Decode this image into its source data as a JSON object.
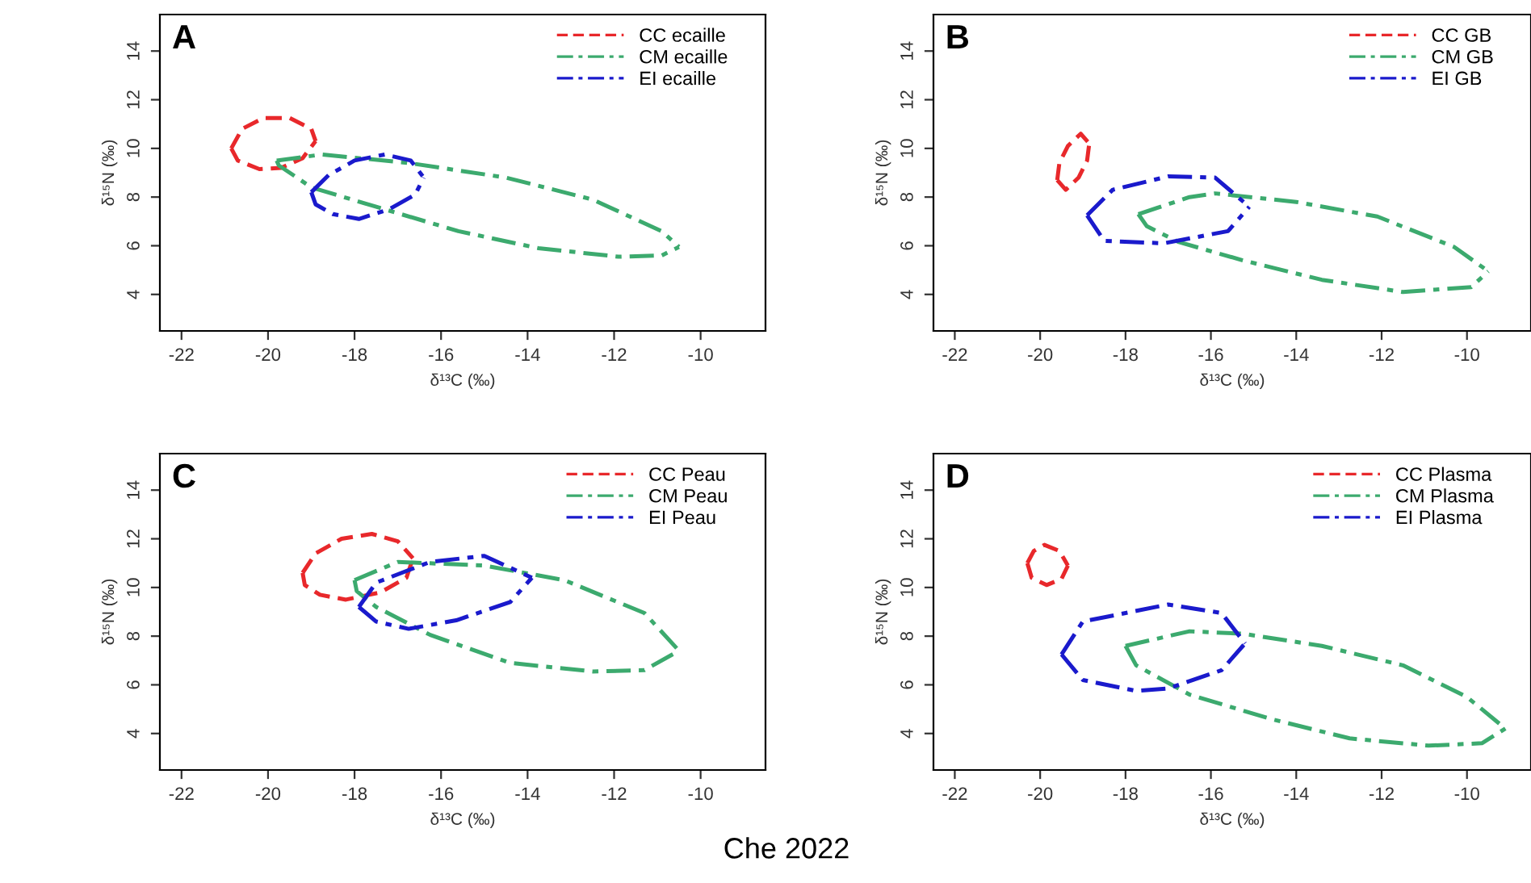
{
  "chart_data": [
    {
      "type": "line",
      "title": "A",
      "xlabel": "δ¹³C (‰)",
      "ylabel": "δ¹⁵N (‰)",
      "xlim": [
        -22.5,
        -8.5
      ],
      "ylim": [
        2.5,
        15.5
      ],
      "xticks": [
        -22,
        -20,
        -18,
        -16,
        -14,
        -12,
        -10
      ],
      "yticks": [
        4,
        6,
        8,
        10,
        12,
        14
      ],
      "legend": "top right",
      "marker": "none",
      "series": [
        {
          "name": "CC ecaille",
          "color": "#e8282b",
          "line_style": "dashed",
          "x": [
            -20.85,
            -20.6,
            -20.1,
            -19.5,
            -19.0,
            -18.9
          ],
          "values": [
            10.0,
            10.8,
            11.25,
            11.25,
            10.8,
            10.3
          ]
        },
        {
          "color": "#e8282b",
          "line_style": "dashed",
          "x": [
            -20.85,
            -20.7,
            -20.2,
            -19.7,
            -19.2,
            -18.9
          ],
          "values": [
            10.0,
            9.5,
            9.15,
            9.2,
            9.6,
            10.3
          ]
        },
        {
          "name": "CM ecaille",
          "color": "#3caa6e",
          "line_style": "dashdot",
          "x": [
            -19.8,
            -18.75,
            -16.75,
            -14.5,
            -12.5,
            -10.9,
            -10.5
          ],
          "values": [
            9.5,
            9.75,
            9.4,
            8.8,
            7.9,
            6.6,
            5.95
          ]
        },
        {
          "color": "#3caa6e",
          "line_style": "dashdot",
          "x": [
            -19.8,
            -19.75,
            -19.0,
            -17.5,
            -15.6,
            -13.75,
            -11.9,
            -10.9,
            -10.5
          ],
          "values": [
            9.5,
            9.3,
            8.4,
            7.6,
            6.6,
            5.9,
            5.55,
            5.6,
            5.95
          ]
        },
        {
          "name": "EI ecaille",
          "color": "#1a1acc",
          "line_style": "dashdot",
          "x": [
            -19.0,
            -18.6,
            -18.0,
            -17.3,
            -16.7,
            -16.4
          ],
          "values": [
            8.2,
            8.9,
            9.5,
            9.75,
            9.5,
            8.8
          ]
        },
        {
          "color": "#1a1acc",
          "line_style": "dashdot",
          "x": [
            -19.0,
            -18.9,
            -18.5,
            -17.9,
            -17.2,
            -16.6,
            -16.4
          ],
          "values": [
            8.2,
            7.7,
            7.3,
            7.1,
            7.5,
            8.1,
            8.8
          ]
        }
      ]
    },
    {
      "type": "line",
      "title": "B",
      "xlabel": "δ¹³C (‰)",
      "ylabel": "δ¹⁵N (‰)",
      "xlim": [
        -22.5,
        -8.5
      ],
      "ylim": [
        2.5,
        15.5
      ],
      "xticks": [
        -22,
        -20,
        -18,
        -16,
        -14,
        -12,
        -10
      ],
      "yticks": [
        4,
        6,
        8,
        10,
        12,
        14
      ],
      "legend": "top right",
      "marker": "none",
      "series": [
        {
          "name": "CC GB",
          "color": "#e8282b",
          "line_style": "dashed",
          "x": [
            -19.6,
            -19.55,
            -19.35,
            -19.05,
            -18.85
          ],
          "values": [
            8.7,
            9.4,
            10.1,
            10.6,
            10.2
          ]
        },
        {
          "color": "#e8282b",
          "line_style": "dashed",
          "x": [
            -19.6,
            -19.4,
            -19.1,
            -18.9,
            -18.85
          ],
          "values": [
            8.7,
            8.3,
            8.8,
            9.5,
            10.2
          ]
        },
        {
          "name": "CM GB",
          "color": "#3caa6e",
          "line_style": "dashdot",
          "x": [
            -17.7,
            -16.5,
            -15.9,
            -14.0,
            -12.1,
            -10.3,
            -9.5
          ],
          "values": [
            7.3,
            8.0,
            8.15,
            7.8,
            7.2,
            5.95,
            4.95
          ]
        },
        {
          "color": "#3caa6e",
          "line_style": "dashdot",
          "x": [
            -17.7,
            -17.5,
            -16.75,
            -15.25,
            -13.4,
            -11.5,
            -9.9,
            -9.5
          ],
          "values": [
            7.3,
            6.8,
            6.15,
            5.4,
            4.6,
            4.1,
            4.3,
            4.95
          ]
        },
        {
          "name": "EI GB",
          "color": "#1a1acc",
          "line_style": "dashdot",
          "x": [
            -18.9,
            -18.3,
            -17.0,
            -15.9,
            -15.1
          ],
          "values": [
            7.25,
            8.3,
            8.85,
            8.8,
            7.6
          ]
        },
        {
          "color": "#1a1acc",
          "line_style": "dashdot",
          "x": [
            -18.9,
            -18.5,
            -17.1,
            -15.6,
            -15.1
          ],
          "values": [
            7.25,
            6.2,
            6.1,
            6.6,
            7.6
          ]
        }
      ]
    },
    {
      "type": "line",
      "title": "C",
      "xlabel": "δ¹³C (‰)",
      "ylabel": "δ¹⁵N (‰)",
      "xlim": [
        -22.5,
        -8.5
      ],
      "ylim": [
        2.5,
        15.5
      ],
      "xticks": [
        -22,
        -20,
        -18,
        -16,
        -14,
        -12,
        -10
      ],
      "yticks": [
        4,
        6,
        8,
        10,
        12,
        14
      ],
      "legend": "top right",
      "marker": "none",
      "annotations": [
        "Che 2022"
      ],
      "series": [
        {
          "name": "CC Peau",
          "color": "#e8282b",
          "line_style": "dashed",
          "x": [
            -19.2,
            -18.9,
            -18.3,
            -17.6,
            -17.0,
            -16.65
          ],
          "values": [
            10.6,
            11.4,
            12.0,
            12.2,
            11.9,
            11.2
          ]
        },
        {
          "color": "#e8282b",
          "line_style": "dashed",
          "x": [
            -19.2,
            -19.15,
            -18.8,
            -18.2,
            -17.4,
            -16.8,
            -16.65
          ],
          "values": [
            10.6,
            10.1,
            9.7,
            9.5,
            9.8,
            10.4,
            11.2
          ]
        },
        {
          "name": "CM Peau",
          "color": "#3caa6e",
          "line_style": "dashdot",
          "x": [
            -18.0,
            -17.0,
            -15.0,
            -13.15,
            -11.3,
            -10.5
          ],
          "values": [
            10.3,
            11.05,
            10.9,
            10.3,
            8.95,
            7.4
          ]
        },
        {
          "color": "#3caa6e",
          "line_style": "dashdot",
          "x": [
            -18.0,
            -17.95,
            -17.5,
            -16.25,
            -14.4,
            -12.5,
            -11.3,
            -10.5
          ],
          "values": [
            10.3,
            9.85,
            9.2,
            8.05,
            6.9,
            6.55,
            6.6,
            7.4
          ]
        },
        {
          "name": "EI Peau",
          "color": "#1a1acc",
          "line_style": "dashdot",
          "x": [
            -17.9,
            -17.5,
            -16.25,
            -15.0,
            -13.9
          ],
          "values": [
            9.2,
            10.2,
            11.05,
            11.3,
            10.4
          ]
        },
        {
          "color": "#1a1acc",
          "line_style": "dashdot",
          "x": [
            -17.9,
            -17.5,
            -16.75,
            -15.65,
            -14.4,
            -13.9
          ],
          "values": [
            9.2,
            8.6,
            8.3,
            8.65,
            9.4,
            10.4
          ]
        }
      ]
    },
    {
      "type": "line",
      "title": "D",
      "xlabel": "δ¹³C (‰)",
      "ylabel": "δ¹⁵N (‰)",
      "xlim": [
        -22.5,
        -8.5
      ],
      "ylim": [
        2.5,
        15.5
      ],
      "xticks": [
        -22,
        -20,
        -18,
        -16,
        -14,
        -12,
        -10
      ],
      "yticks": [
        4,
        6,
        8,
        10,
        12,
        14
      ],
      "legend": "top right",
      "marker": "none",
      "series": [
        {
          "name": "CC Plasma",
          "color": "#e8282b",
          "line_style": "dashed",
          "x": [
            -20.3,
            -20.15,
            -19.9,
            -19.55,
            -19.35
          ],
          "values": [
            11.0,
            11.5,
            11.75,
            11.5,
            10.9
          ]
        },
        {
          "color": "#e8282b",
          "line_style": "dashed",
          "x": [
            -20.3,
            -20.2,
            -19.85,
            -19.5,
            -19.35
          ],
          "values": [
            11.0,
            10.4,
            10.1,
            10.35,
            10.9
          ]
        },
        {
          "name": "CM Plasma",
          "color": "#3caa6e",
          "line_style": "dashdot",
          "x": [
            -18.0,
            -16.5,
            -15.25,
            -13.4,
            -11.5,
            -10.0,
            -9.1
          ],
          "values": [
            7.6,
            8.2,
            8.1,
            7.6,
            6.8,
            5.5,
            4.2
          ]
        },
        {
          "color": "#3caa6e",
          "line_style": "dashdot",
          "x": [
            -18.0,
            -17.75,
            -16.5,
            -14.6,
            -12.75,
            -10.9,
            -9.65,
            -9.1
          ],
          "values": [
            7.6,
            6.8,
            5.6,
            4.6,
            3.8,
            3.5,
            3.6,
            4.2
          ]
        },
        {
          "name": "EI Plasma",
          "color": "#1a1acc",
          "line_style": "dashdot",
          "x": [
            -19.5,
            -19.0,
            -17.0,
            -15.75,
            -15.2
          ],
          "values": [
            7.25,
            8.6,
            9.3,
            8.95,
            7.7
          ]
        },
        {
          "color": "#1a1acc",
          "line_style": "dashdot",
          "x": [
            -19.5,
            -19.0,
            -17.75,
            -17.0,
            -15.75,
            -15.2
          ],
          "values": [
            7.25,
            6.2,
            5.75,
            5.85,
            6.6,
            7.7
          ]
        }
      ]
    }
  ]
}
